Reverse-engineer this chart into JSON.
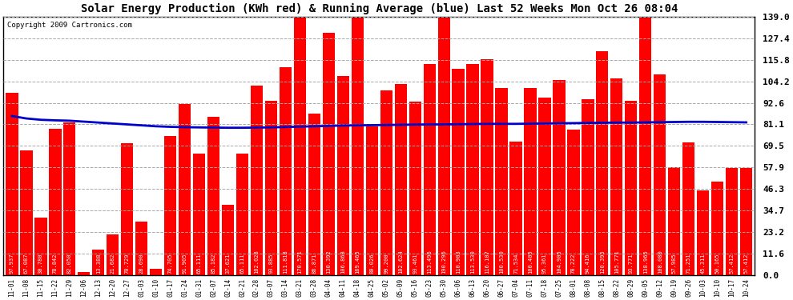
{
  "title": "Solar Energy Production (KWh red) & Running Average (blue) Last 52 Weeks Mon Oct 26 08:04",
  "copyright": "Copyright 2009 Cartronics.com",
  "categories": [
    "11-01",
    "11-08",
    "11-15",
    "11-22",
    "11-29",
    "12-06",
    "12-13",
    "12-20",
    "12-27",
    "01-03",
    "01-10",
    "01-17",
    "01-24",
    "01-31",
    "02-07",
    "02-14",
    "02-21",
    "02-28",
    "03-07",
    "03-14",
    "03-21",
    "03-28",
    "04-04",
    "04-11",
    "04-18",
    "04-25",
    "05-02",
    "05-09",
    "05-16",
    "05-23",
    "05-30",
    "06-06",
    "06-13",
    "06-20",
    "06-27",
    "07-04",
    "07-11",
    "07-18",
    "07-25",
    "08-01",
    "08-08",
    "08-15",
    "08-22",
    "08-29",
    "09-05",
    "09-12",
    "09-19",
    "09-26",
    "10-03",
    "10-10",
    "10-17",
    "10-24"
  ],
  "values": [
    97.937,
    67.087,
    30.78,
    78.842,
    82.05,
    1.65,
    13.388,
    21.682,
    70.729,
    28.69,
    3.45,
    74.705,
    91.905,
    65.111,
    85.182,
    37.621,
    65.111,
    102.028,
    93.885,
    111.818,
    170.571,
    86.871,
    130.392,
    106.868,
    169.465,
    80.026,
    99.2,
    102.624,
    93.461,
    113.496,
    190.296,
    110.903,
    113.53,
    116.107,
    100.53,
    71.534,
    100.405,
    95.361,
    104.905,
    78.222,
    94.416,
    120.395,
    105.771,
    93.771,
    138.965,
    108.08,
    57.985,
    71.251,
    45.311,
    50.165,
    57.412,
    57.412
  ],
  "running_avg": [
    85.5,
    84.2,
    83.5,
    83.2,
    83.0,
    82.5,
    82.0,
    81.5,
    81.0,
    80.5,
    80.0,
    79.7,
    79.5,
    79.4,
    79.3,
    79.2,
    79.2,
    79.3,
    79.4,
    79.6,
    79.8,
    80.0,
    80.2,
    80.4,
    80.5,
    80.6,
    80.7,
    80.8,
    80.9,
    81.0,
    81.0,
    81.1,
    81.2,
    81.3,
    81.3,
    81.3,
    81.4,
    81.5,
    81.6,
    81.7,
    81.8,
    81.9,
    82.0,
    82.0,
    82.1,
    82.2,
    82.3,
    82.4,
    82.4,
    82.3,
    82.2,
    82.1
  ],
  "bar_color": "#ff0000",
  "line_color": "#0000cc",
  "background_color": "#ffffff",
  "plot_bg_color": "#ffffff",
  "grid_color": "#aaaaaa",
  "text_color": "#000000",
  "yticks": [
    0.0,
    11.6,
    23.2,
    34.7,
    46.3,
    57.9,
    69.5,
    81.1,
    92.6,
    104.2,
    115.8,
    127.4,
    139.0
  ],
  "ymax": 139.0,
  "ymin": 0.0,
  "title_fontsize": 10,
  "copyright_fontsize": 6.5,
  "bar_value_fontsize": 5,
  "xtick_fontsize": 5.5,
  "ytick_fontsize": 8
}
